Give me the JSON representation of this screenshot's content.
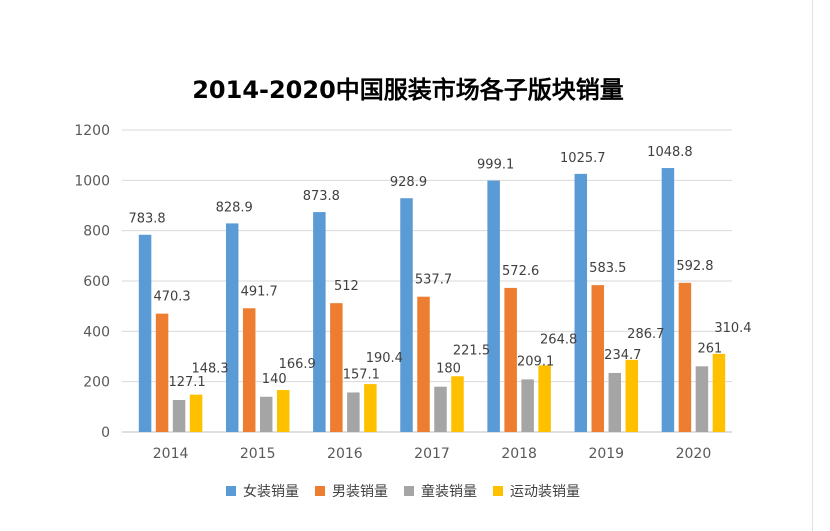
{
  "chart_data": {
    "type": "bar",
    "title": "2014-2020中国服装市场各子版块销量",
    "categories": [
      "2014",
      "2015",
      "2016",
      "2017",
      "2018",
      "2019",
      "2020"
    ],
    "series": [
      {
        "name": "女装销量",
        "color": "#5B9BD5",
        "values": [
          783.8,
          828.9,
          873.8,
          928.9,
          999.1,
          1025.7,
          1048.8
        ],
        "labels": [
          "783.8",
          "828.9",
          "873.8",
          "928.9",
          "999.1",
          "1025.7",
          "1048.8"
        ]
      },
      {
        "name": "男装销量",
        "color": "#ED7D31",
        "values": [
          470.3,
          491.7,
          512,
          537.7,
          572.6,
          583.5,
          592.8
        ],
        "labels": [
          "470.3",
          "491.7",
          "512",
          "537.7",
          "572.6",
          "583.5",
          "592.8"
        ]
      },
      {
        "name": "童装销量",
        "color": "#A5A5A5",
        "values": [
          127.1,
          140,
          157.1,
          180,
          209.1,
          234.7,
          261
        ],
        "labels": [
          "127.1",
          "140",
          "157.1",
          "180",
          "209.1",
          "234.7",
          "261"
        ]
      },
      {
        "name": "运动装销量",
        "color": "#FFC000",
        "values": [
          148.3,
          166.9,
          190.4,
          221.5,
          264.8,
          286.7,
          310.4
        ],
        "labels": [
          "148.3",
          "166.9",
          "190.4",
          "221.5",
          "264.8",
          "286.7",
          "310.4"
        ]
      }
    ],
    "ylim": [
      0,
      1200
    ],
    "yticks": [
      0,
      200,
      400,
      600,
      800,
      1000,
      1200
    ],
    "ytick_labels": [
      "0",
      "200",
      "400",
      "600",
      "800",
      "1000",
      "1200"
    ],
    "grid": true,
    "legend_position": "bottom"
  }
}
